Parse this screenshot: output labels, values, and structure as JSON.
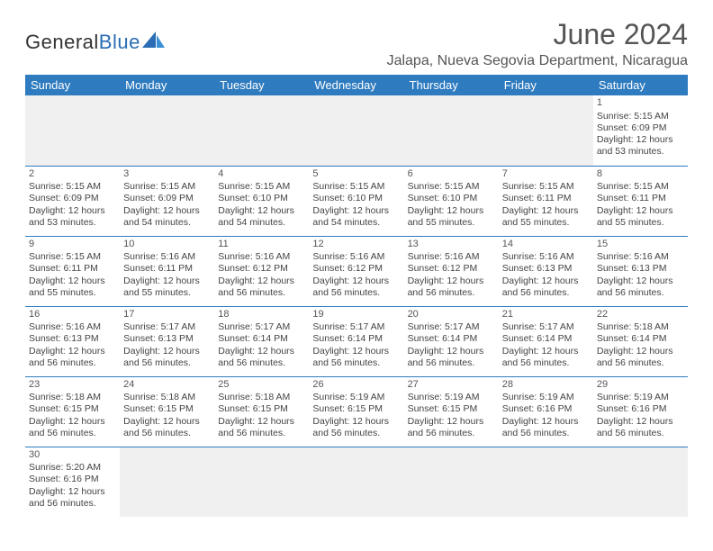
{
  "logo": {
    "word1": "General",
    "word2": "Blue"
  },
  "title": "June 2024",
  "location": "Jalapa, Nueva Segovia Department, Nicaragua",
  "colors": {
    "header_bg": "#2e7bbf",
    "header_text": "#ffffff",
    "row_border": "#2e7bbf",
    "empty_bg": "#f0f0f0",
    "body_text": "#444444",
    "title_text": "#555555"
  },
  "weekdays": [
    "Sunday",
    "Monday",
    "Tuesday",
    "Wednesday",
    "Thursday",
    "Friday",
    "Saturday"
  ],
  "days": {
    "1": {
      "sunrise": "Sunrise: 5:15 AM",
      "sunset": "Sunset: 6:09 PM",
      "daylight1": "Daylight: 12 hours",
      "daylight2": "and 53 minutes."
    },
    "2": {
      "sunrise": "Sunrise: 5:15 AM",
      "sunset": "Sunset: 6:09 PM",
      "daylight1": "Daylight: 12 hours",
      "daylight2": "and 53 minutes."
    },
    "3": {
      "sunrise": "Sunrise: 5:15 AM",
      "sunset": "Sunset: 6:09 PM",
      "daylight1": "Daylight: 12 hours",
      "daylight2": "and 54 minutes."
    },
    "4": {
      "sunrise": "Sunrise: 5:15 AM",
      "sunset": "Sunset: 6:10 PM",
      "daylight1": "Daylight: 12 hours",
      "daylight2": "and 54 minutes."
    },
    "5": {
      "sunrise": "Sunrise: 5:15 AM",
      "sunset": "Sunset: 6:10 PM",
      "daylight1": "Daylight: 12 hours",
      "daylight2": "and 54 minutes."
    },
    "6": {
      "sunrise": "Sunrise: 5:15 AM",
      "sunset": "Sunset: 6:10 PM",
      "daylight1": "Daylight: 12 hours",
      "daylight2": "and 55 minutes."
    },
    "7": {
      "sunrise": "Sunrise: 5:15 AM",
      "sunset": "Sunset: 6:11 PM",
      "daylight1": "Daylight: 12 hours",
      "daylight2": "and 55 minutes."
    },
    "8": {
      "sunrise": "Sunrise: 5:15 AM",
      "sunset": "Sunset: 6:11 PM",
      "daylight1": "Daylight: 12 hours",
      "daylight2": "and 55 minutes."
    },
    "9": {
      "sunrise": "Sunrise: 5:15 AM",
      "sunset": "Sunset: 6:11 PM",
      "daylight1": "Daylight: 12 hours",
      "daylight2": "and 55 minutes."
    },
    "10": {
      "sunrise": "Sunrise: 5:16 AM",
      "sunset": "Sunset: 6:11 PM",
      "daylight1": "Daylight: 12 hours",
      "daylight2": "and 55 minutes."
    },
    "11": {
      "sunrise": "Sunrise: 5:16 AM",
      "sunset": "Sunset: 6:12 PM",
      "daylight1": "Daylight: 12 hours",
      "daylight2": "and 56 minutes."
    },
    "12": {
      "sunrise": "Sunrise: 5:16 AM",
      "sunset": "Sunset: 6:12 PM",
      "daylight1": "Daylight: 12 hours",
      "daylight2": "and 56 minutes."
    },
    "13": {
      "sunrise": "Sunrise: 5:16 AM",
      "sunset": "Sunset: 6:12 PM",
      "daylight1": "Daylight: 12 hours",
      "daylight2": "and 56 minutes."
    },
    "14": {
      "sunrise": "Sunrise: 5:16 AM",
      "sunset": "Sunset: 6:13 PM",
      "daylight1": "Daylight: 12 hours",
      "daylight2": "and 56 minutes."
    },
    "15": {
      "sunrise": "Sunrise: 5:16 AM",
      "sunset": "Sunset: 6:13 PM",
      "daylight1": "Daylight: 12 hours",
      "daylight2": "and 56 minutes."
    },
    "16": {
      "sunrise": "Sunrise: 5:16 AM",
      "sunset": "Sunset: 6:13 PM",
      "daylight1": "Daylight: 12 hours",
      "daylight2": "and 56 minutes."
    },
    "17": {
      "sunrise": "Sunrise: 5:17 AM",
      "sunset": "Sunset: 6:13 PM",
      "daylight1": "Daylight: 12 hours",
      "daylight2": "and 56 minutes."
    },
    "18": {
      "sunrise": "Sunrise: 5:17 AM",
      "sunset": "Sunset: 6:14 PM",
      "daylight1": "Daylight: 12 hours",
      "daylight2": "and 56 minutes."
    },
    "19": {
      "sunrise": "Sunrise: 5:17 AM",
      "sunset": "Sunset: 6:14 PM",
      "daylight1": "Daylight: 12 hours",
      "daylight2": "and 56 minutes."
    },
    "20": {
      "sunrise": "Sunrise: 5:17 AM",
      "sunset": "Sunset: 6:14 PM",
      "daylight1": "Daylight: 12 hours",
      "daylight2": "and 56 minutes."
    },
    "21": {
      "sunrise": "Sunrise: 5:17 AM",
      "sunset": "Sunset: 6:14 PM",
      "daylight1": "Daylight: 12 hours",
      "daylight2": "and 56 minutes."
    },
    "22": {
      "sunrise": "Sunrise: 5:18 AM",
      "sunset": "Sunset: 6:14 PM",
      "daylight1": "Daylight: 12 hours",
      "daylight2": "and 56 minutes."
    },
    "23": {
      "sunrise": "Sunrise: 5:18 AM",
      "sunset": "Sunset: 6:15 PM",
      "daylight1": "Daylight: 12 hours",
      "daylight2": "and 56 minutes."
    },
    "24": {
      "sunrise": "Sunrise: 5:18 AM",
      "sunset": "Sunset: 6:15 PM",
      "daylight1": "Daylight: 12 hours",
      "daylight2": "and 56 minutes."
    },
    "25": {
      "sunrise": "Sunrise: 5:18 AM",
      "sunset": "Sunset: 6:15 PM",
      "daylight1": "Daylight: 12 hours",
      "daylight2": "and 56 minutes."
    },
    "26": {
      "sunrise": "Sunrise: 5:19 AM",
      "sunset": "Sunset: 6:15 PM",
      "daylight1": "Daylight: 12 hours",
      "daylight2": "and 56 minutes."
    },
    "27": {
      "sunrise": "Sunrise: 5:19 AM",
      "sunset": "Sunset: 6:15 PM",
      "daylight1": "Daylight: 12 hours",
      "daylight2": "and 56 minutes."
    },
    "28": {
      "sunrise": "Sunrise: 5:19 AM",
      "sunset": "Sunset: 6:16 PM",
      "daylight1": "Daylight: 12 hours",
      "daylight2": "and 56 minutes."
    },
    "29": {
      "sunrise": "Sunrise: 5:19 AM",
      "sunset": "Sunset: 6:16 PM",
      "daylight1": "Daylight: 12 hours",
      "daylight2": "and 56 minutes."
    },
    "30": {
      "sunrise": "Sunrise: 5:20 AM",
      "sunset": "Sunset: 6:16 PM",
      "daylight1": "Daylight: 12 hours",
      "daylight2": "and 56 minutes."
    }
  },
  "layout": {
    "first_weekday_index": 6,
    "num_days": 30
  }
}
